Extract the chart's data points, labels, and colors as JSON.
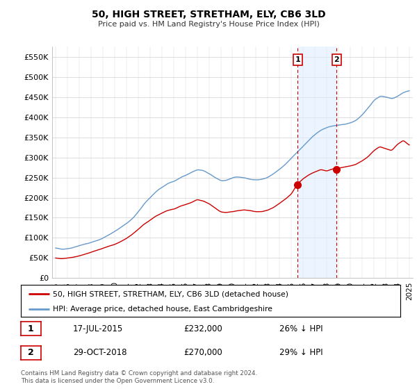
{
  "title": "50, HIGH STREET, STRETHAM, ELY, CB6 3LD",
  "subtitle": "Price paid vs. HM Land Registry's House Price Index (HPI)",
  "hpi_color": "#6699cc",
  "price_color": "#cc0000",
  "annotation_bg": "#ddeeff",
  "annotation_line_color": "#cc0000",
  "ylim": [
    0,
    575000
  ],
  "yticks": [
    0,
    50000,
    100000,
    150000,
    200000,
    250000,
    300000,
    350000,
    400000,
    450000,
    500000,
    550000
  ],
  "xlim_start": 1994.7,
  "xlim_end": 2025.3,
  "transaction1": {
    "date": "17-JUL-2015",
    "price": 232000,
    "label": "1",
    "year": 2015.54
  },
  "transaction2": {
    "date": "29-OCT-2018",
    "price": 270000,
    "label": "2",
    "year": 2018.83
  },
  "legend_line1": "50, HIGH STREET, STRETHAM, ELY, CB6 3LD (detached house)",
  "legend_line2": "HPI: Average price, detached house, East Cambridgeshire",
  "footer": "Contains HM Land Registry data © Crown copyright and database right 2024.\nThis data is licensed under the Open Government Licence v3.0.",
  "table_row1": [
    "1",
    "17-JUL-2015",
    "£232,000",
    "26% ↓ HPI"
  ],
  "table_row2": [
    "2",
    "29-OCT-2018",
    "£270,000",
    "29% ↓ HPI"
  ],
  "hpi_data": [
    [
      1995.0,
      75000
    ],
    [
      1995.5,
      72000
    ],
    [
      1996.0,
      74000
    ],
    [
      1996.5,
      76000
    ],
    [
      1997.0,
      80000
    ],
    [
      1997.5,
      85000
    ],
    [
      1998.0,
      90000
    ],
    [
      1998.5,
      95000
    ],
    [
      1999.0,
      100000
    ],
    [
      1999.5,
      108000
    ],
    [
      2000.0,
      115000
    ],
    [
      2000.5,
      125000
    ],
    [
      2001.0,
      135000
    ],
    [
      2001.5,
      148000
    ],
    [
      2002.0,
      165000
    ],
    [
      2002.5,
      185000
    ],
    [
      2003.0,
      200000
    ],
    [
      2003.5,
      215000
    ],
    [
      2004.0,
      225000
    ],
    [
      2004.5,
      235000
    ],
    [
      2005.0,
      240000
    ],
    [
      2005.5,
      248000
    ],
    [
      2006.0,
      255000
    ],
    [
      2006.5,
      262000
    ],
    [
      2007.0,
      268000
    ],
    [
      2007.5,
      265000
    ],
    [
      2008.0,
      258000
    ],
    [
      2008.5,
      248000
    ],
    [
      2009.0,
      240000
    ],
    [
      2009.5,
      242000
    ],
    [
      2010.0,
      248000
    ],
    [
      2010.5,
      250000
    ],
    [
      2011.0,
      248000
    ],
    [
      2011.5,
      245000
    ],
    [
      2012.0,
      243000
    ],
    [
      2012.5,
      245000
    ],
    [
      2013.0,
      250000
    ],
    [
      2013.5,
      260000
    ],
    [
      2014.0,
      272000
    ],
    [
      2014.5,
      285000
    ],
    [
      2015.0,
      300000
    ],
    [
      2015.5,
      315000
    ],
    [
      2016.0,
      330000
    ],
    [
      2016.5,
      345000
    ],
    [
      2017.0,
      358000
    ],
    [
      2017.5,
      368000
    ],
    [
      2018.0,
      375000
    ],
    [
      2018.5,
      380000
    ],
    [
      2019.0,
      383000
    ],
    [
      2019.5,
      385000
    ],
    [
      2020.0,
      388000
    ],
    [
      2020.5,
      395000
    ],
    [
      2021.0,
      408000
    ],
    [
      2021.5,
      425000
    ],
    [
      2022.0,
      445000
    ],
    [
      2022.5,
      455000
    ],
    [
      2023.0,
      452000
    ],
    [
      2023.5,
      448000
    ],
    [
      2024.0,
      455000
    ],
    [
      2024.5,
      465000
    ],
    [
      2025.0,
      470000
    ]
  ],
  "price_data": [
    [
      1995.0,
      50000
    ],
    [
      1995.5,
      48000
    ],
    [
      1996.0,
      50000
    ],
    [
      1996.5,
      52000
    ],
    [
      1997.0,
      56000
    ],
    [
      1997.5,
      60000
    ],
    [
      1998.0,
      65000
    ],
    [
      1998.5,
      70000
    ],
    [
      1999.0,
      75000
    ],
    [
      1999.5,
      80000
    ],
    [
      2000.0,
      85000
    ],
    [
      2000.5,
      92000
    ],
    [
      2001.0,
      100000
    ],
    [
      2001.5,
      110000
    ],
    [
      2002.0,
      122000
    ],
    [
      2002.5,
      135000
    ],
    [
      2003.0,
      145000
    ],
    [
      2003.5,
      155000
    ],
    [
      2004.0,
      162000
    ],
    [
      2004.5,
      168000
    ],
    [
      2005.0,
      172000
    ],
    [
      2005.5,
      178000
    ],
    [
      2006.0,
      183000
    ],
    [
      2006.5,
      188000
    ],
    [
      2007.0,
      195000
    ],
    [
      2007.5,
      192000
    ],
    [
      2008.0,
      185000
    ],
    [
      2008.5,
      175000
    ],
    [
      2009.0,
      165000
    ],
    [
      2009.5,
      163000
    ],
    [
      2010.0,
      165000
    ],
    [
      2010.5,
      168000
    ],
    [
      2011.0,
      170000
    ],
    [
      2011.5,
      168000
    ],
    [
      2012.0,
      165000
    ],
    [
      2012.5,
      165000
    ],
    [
      2013.0,
      168000
    ],
    [
      2013.5,
      175000
    ],
    [
      2014.0,
      185000
    ],
    [
      2014.5,
      195000
    ],
    [
      2015.0,
      208000
    ],
    [
      2015.5,
      232000
    ],
    [
      2016.0,
      245000
    ],
    [
      2016.5,
      255000
    ],
    [
      2017.0,
      262000
    ],
    [
      2017.5,
      268000
    ],
    [
      2018.0,
      265000
    ],
    [
      2018.5,
      270000
    ],
    [
      2019.0,
      272000
    ],
    [
      2019.5,
      275000
    ],
    [
      2020.0,
      278000
    ],
    [
      2020.5,
      282000
    ],
    [
      2021.0,
      290000
    ],
    [
      2021.5,
      300000
    ],
    [
      2022.0,
      315000
    ],
    [
      2022.5,
      325000
    ],
    [
      2023.0,
      320000
    ],
    [
      2023.5,
      315000
    ],
    [
      2024.0,
      330000
    ],
    [
      2024.5,
      340000
    ],
    [
      2025.0,
      328000
    ]
  ]
}
